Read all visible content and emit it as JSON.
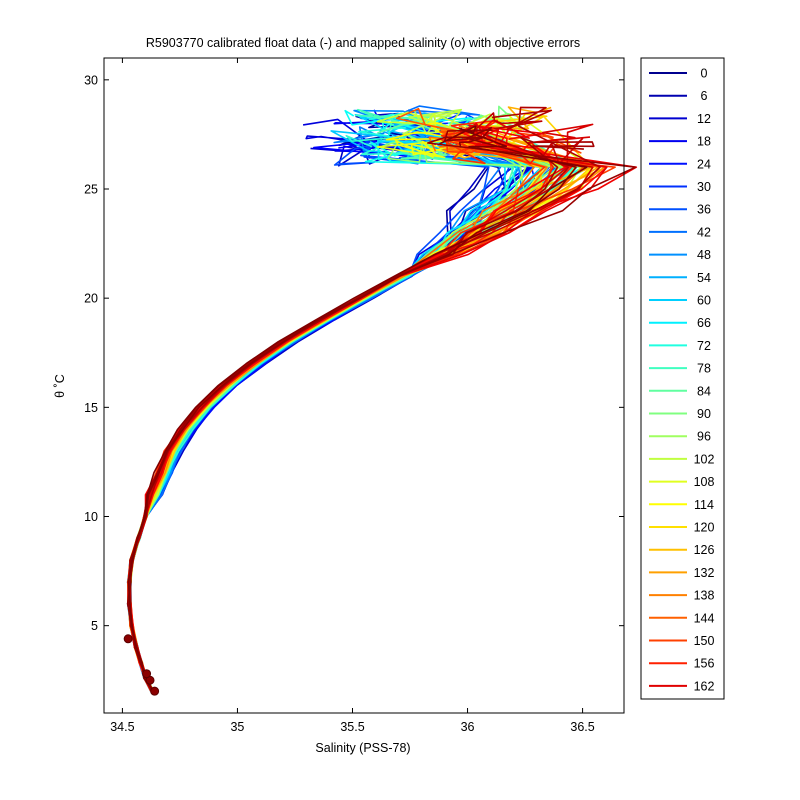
{
  "chart_data": {
    "type": "line",
    "title": "R5903770 calibrated float data (-) and mapped salinity (o) with objective errors",
    "xlabel": "Salinity (PSS-78)",
    "ylabel": "θ ˚C",
    "xlim": [
      34.42,
      36.68
    ],
    "ylim": [
      1,
      31
    ],
    "xticks": [
      34.5,
      35,
      35.5,
      36,
      36.5
    ],
    "xtick_labels": [
      "34.5",
      "35",
      "35.5",
      "36",
      "36.5"
    ],
    "yticks": [
      5,
      10,
      15,
      20,
      25,
      30
    ],
    "ytick_labels": [
      "5",
      "10",
      "15",
      "20",
      "25",
      "30"
    ],
    "legend": {
      "placement": "outside-right",
      "entries": [
        "0",
        "6",
        "12",
        "18",
        "24",
        "30",
        "36",
        "42",
        "48",
        "54",
        "60",
        "66",
        "72",
        "78",
        "84",
        "90",
        "96",
        "102",
        "108",
        "114",
        "120",
        "126",
        "132",
        "138",
        "144",
        "150",
        "156",
        "162"
      ],
      "colors": [
        "#00008f",
        "#0000b0",
        "#0000d0",
        "#0000f0",
        "#0010ff",
        "#0030ff",
        "#0050ff",
        "#0070ff",
        "#0090ff",
        "#00b0ff",
        "#00d0ff",
        "#00f0ff",
        "#20ffe0",
        "#40ffc0",
        "#60ffa0",
        "#80ff80",
        "#a0ff60",
        "#c0ff40",
        "#e0ff20",
        "#ffff00",
        "#ffe000",
        "#ffc000",
        "#ffa000",
        "#ff8000",
        "#ff6000",
        "#ff4000",
        "#ff2000",
        "#e00000"
      ]
    },
    "profile_color_scale": [
      "#00008f",
      "#0000ff",
      "#0080ff",
      "#00ffff",
      "#80ff80",
      "#ffff00",
      "#ff8000",
      "#ff0000",
      "#800000"
    ],
    "base_profile": {
      "salinity": [
        34.63,
        34.6,
        34.58,
        34.56,
        34.54,
        34.53,
        34.53,
        34.54,
        34.57,
        34.6,
        34.64,
        34.68,
        34.72,
        34.78,
        34.86,
        34.96,
        35.08,
        35.22,
        35.38,
        35.55,
        35.72,
        35.88,
        36.02,
        36.15,
        36.28,
        36.38
      ],
      "theta": [
        2.0,
        2.6,
        3.3,
        4.0,
        5.0,
        6.0,
        7.0,
        8.0,
        9.0,
        10.0,
        11.0,
        12.0,
        13.0,
        14.0,
        15.0,
        16.0,
        17.0,
        18.0,
        19.0,
        20.0,
        21.0,
        22.0,
        23.0,
        24.0,
        25.0,
        26.0
      ]
    },
    "mapped_salinity_points": [
      {
        "salinity": 34.64,
        "theta": 2.0
      },
      {
        "salinity": 34.62,
        "theta": 2.5
      },
      {
        "salinity": 34.605,
        "theta": 2.8
      },
      {
        "salinity": 34.525,
        "theta": 4.4
      }
    ],
    "profile_count": 163,
    "profile_step": 6
  }
}
